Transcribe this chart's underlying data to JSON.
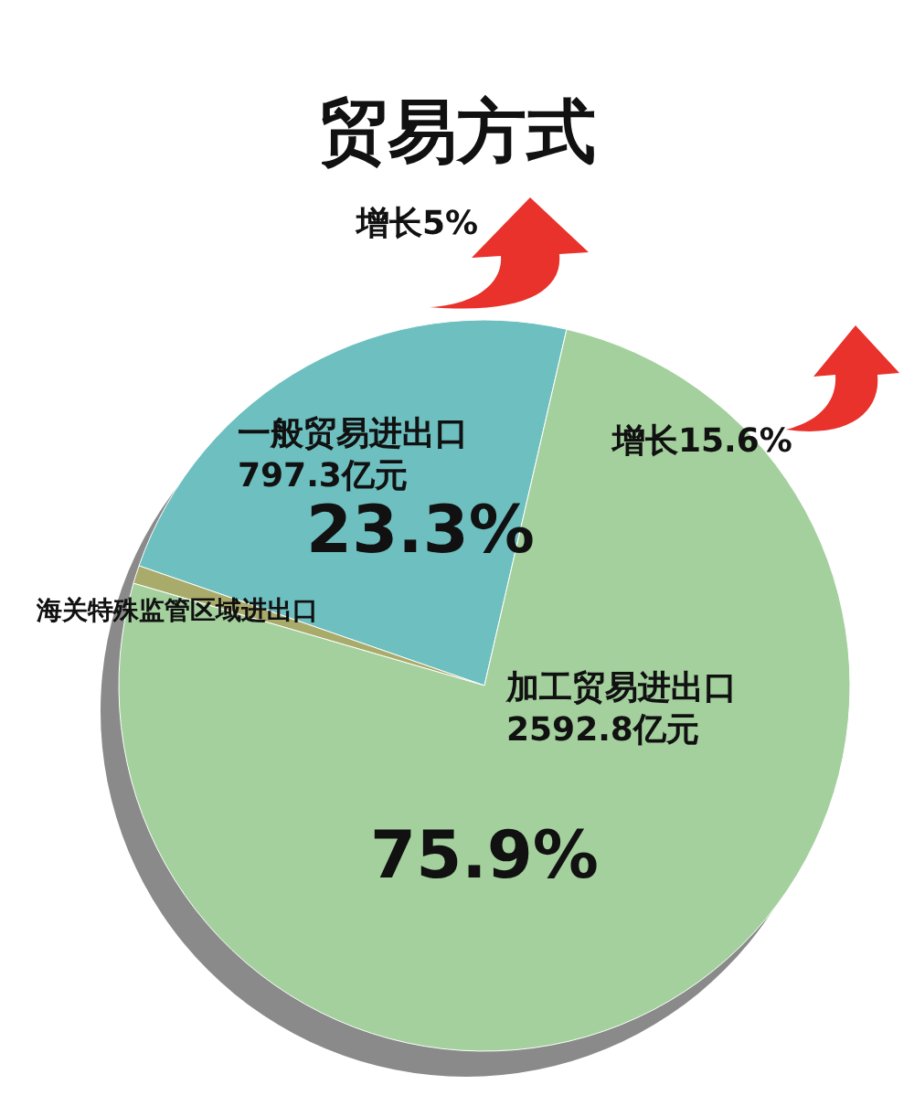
{
  "chart_data": {
    "type": "pie",
    "title": "贸易方式",
    "categories": [
      "一般贸易进出口",
      "海关特殊监管区域进出口",
      "加工贸易进出口"
    ],
    "values": [
      23.3,
      0.8,
      75.9
    ],
    "colors": [
      "#6dbfc0",
      "#a9ab6b",
      "#a3d09d"
    ],
    "value_labels": [
      "23.3%",
      null,
      "75.9%"
    ],
    "annotations": [
      "797.3亿元",
      "2592.8亿元",
      "增长5%",
      "增长15.6%"
    ]
  }
}
